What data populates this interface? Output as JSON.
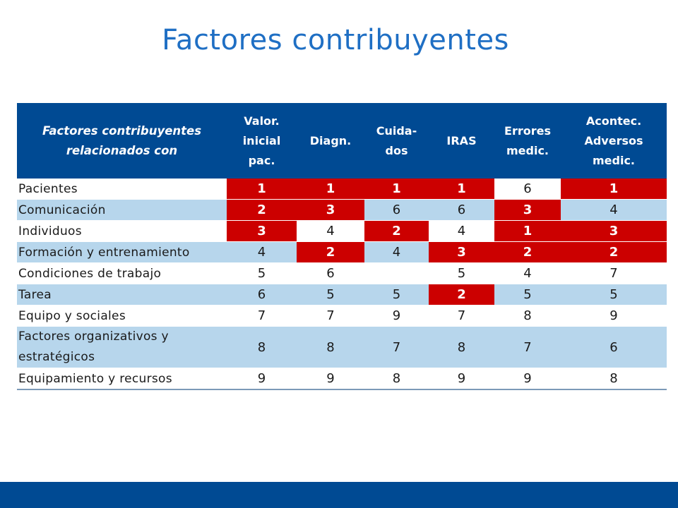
{
  "title": "Factores contribuyentes",
  "table": {
    "headers": [
      "Factores contribuyentes relacionados con",
      "Valor. inicial pac.",
      "Diagn.",
      "Cuida-dos",
      "IRAS",
      "Errores medic.",
      "Acontec. Adversos medic."
    ],
    "rows": [
      {
        "label": "Pacientes",
        "cells": [
          "1",
          "1",
          "1",
          "1",
          "6",
          "1"
        ]
      },
      {
        "label": "Comunicación",
        "cells": [
          "2",
          "3",
          "6",
          "6",
          "3",
          "4"
        ]
      },
      {
        "label": "Individuos",
        "cells": [
          "3",
          "4",
          "2",
          "4",
          "1",
          "3"
        ]
      },
      {
        "label": "Formación y entrenamiento",
        "cells": [
          "4",
          "2",
          "4",
          "3",
          "2",
          "2"
        ]
      },
      {
        "label": "Condiciones de trabajo",
        "cells": [
          "5",
          "6",
          "",
          "5",
          "4",
          "7"
        ]
      },
      {
        "label": "Tarea",
        "cells": [
          "6",
          "5",
          "5",
          "2",
          "5",
          "5"
        ]
      },
      {
        "label": "Equipo y sociales",
        "cells": [
          "7",
          "7",
          "9",
          "7",
          "8",
          "9"
        ]
      },
      {
        "label": "Factores organizativos y estratégicos",
        "cells": [
          "8",
          "8",
          "7",
          "8",
          "7",
          "6"
        ]
      },
      {
        "label": "Equipamiento y recursos",
        "cells": [
          "9",
          "9",
          "8",
          "9",
          "9",
          "8"
        ]
      }
    ]
  },
  "colors": {
    "title": "#1f6fc4",
    "header_bg": "#004a93",
    "highlight": "#cc0000",
    "row_alt": "#b7d6ec",
    "footer_bar": "#004a93"
  }
}
